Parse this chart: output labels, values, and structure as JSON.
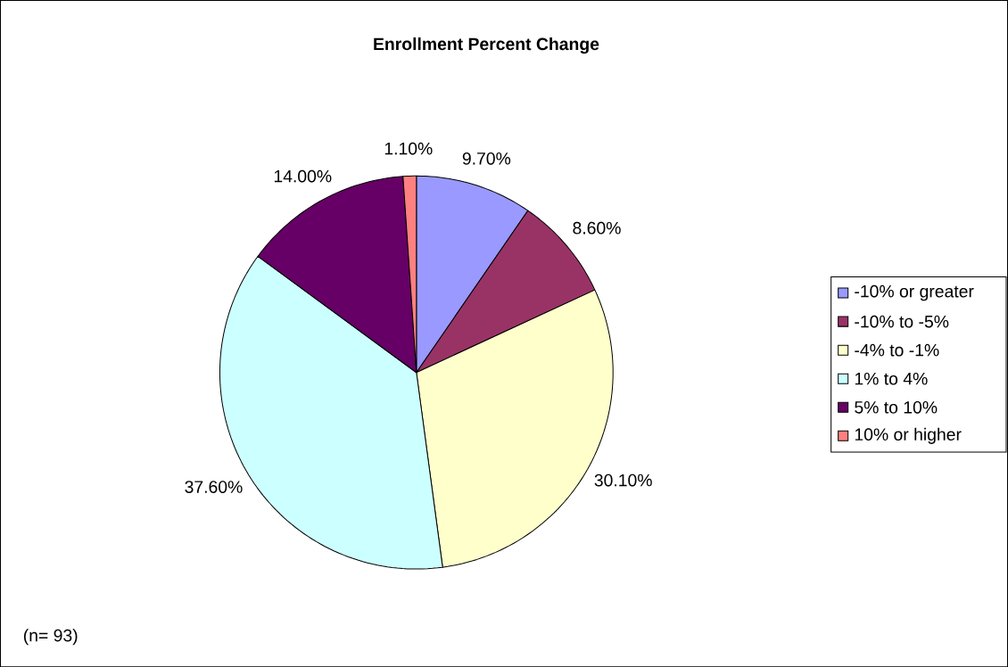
{
  "chart_data": {
    "type": "pie",
    "title": "Enrollment Percent Change",
    "categories": [
      "-10% or greater",
      "-10% to -5%",
      "-4% to -1%",
      "1% to 4%",
      "5% to 10%",
      "10% or higher"
    ],
    "values": [
      9.7,
      8.6,
      30.1,
      37.6,
      14.0,
      1.1
    ],
    "value_labels": [
      "9.70%",
      "8.60%",
      "30.10%",
      "37.60%",
      "14.00%",
      "1.10%"
    ],
    "colors": [
      "#9999ff",
      "#993366",
      "#ffffcc",
      "#ccffff",
      "#660066",
      "#ff8080"
    ],
    "legend": "right",
    "annotations": [
      "(n= 93)"
    ]
  }
}
